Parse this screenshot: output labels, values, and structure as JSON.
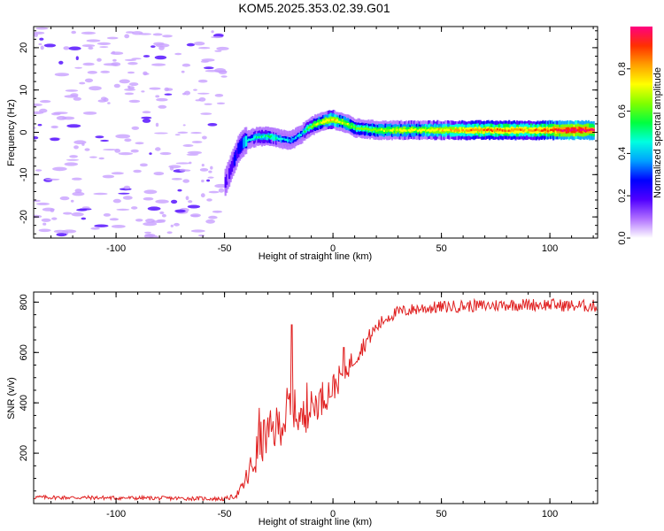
{
  "title": "KOM5.2025.353.02.39.G01",
  "spectrogram": {
    "xlabel": "Height of straight line (km)",
    "ylabel": "Frequency (Hz)",
    "xlim": [
      -138,
      122
    ],
    "ylim": [
      -25,
      25
    ],
    "xticks": [
      -100,
      -50,
      0,
      50,
      100
    ],
    "yticks": [
      -20,
      -10,
      0,
      10,
      20
    ],
    "xtick_labels": [
      "-100",
      "-50",
      "0",
      "50",
      "100"
    ],
    "ytick_labels": [
      "-20",
      "-10",
      "0",
      "10",
      "20"
    ]
  },
  "colorbar": {
    "label": "Normalized spectral amplitude",
    "ticks": [
      0.0,
      0.2,
      0.4,
      0.6,
      0.8
    ],
    "tick_labels": [
      "0.0",
      "0.2",
      "0.4",
      "0.6",
      "0.8"
    ],
    "range": [
      0,
      1
    ],
    "colors": [
      "#ffffff",
      "#b070ff",
      "#5000ff",
      "#0000ff",
      "#00a0ff",
      "#00ffe0",
      "#00ff40",
      "#80ff00",
      "#ffff00",
      "#ffa000",
      "#ff3000",
      "#ff0080"
    ]
  },
  "chart_data": [
    {
      "type": "heatmap",
      "title": "KOM5.2025.353.02.39.G01",
      "xlabel": "Height of straight line (km)",
      "ylabel": "Frequency (Hz)",
      "xlim": [
        -138,
        122
      ],
      "ylim": [
        -25,
        25
      ],
      "ridge": {
        "x": [
          -50,
          -47,
          -44,
          -41,
          -38,
          -35,
          -30,
          -25,
          -20,
          -15,
          -12,
          -8,
          -5,
          -2,
          0,
          3,
          6,
          10,
          20,
          30,
          40,
          50,
          60,
          70,
          80,
          90,
          100,
          110,
          120
        ],
        "y": [
          -12,
          -8,
          -4,
          -2,
          -1.5,
          -1,
          -1,
          -1.5,
          -2,
          -0.5,
          1,
          2,
          2.5,
          3,
          3,
          2.5,
          2,
          1,
          0.5,
          0.5,
          0.5,
          0.5,
          0.5,
          0.5,
          0.5,
          0.5,
          0.5,
          0.5,
          0.5
        ],
        "amplitude": [
          0.15,
          0.2,
          0.25,
          0.35,
          0.45,
          0.5,
          0.55,
          0.45,
          0.4,
          0.4,
          0.55,
          0.65,
          0.7,
          0.75,
          0.75,
          0.7,
          0.65,
          0.6,
          0.65,
          0.7,
          0.7,
          0.75,
          0.8,
          0.85,
          0.85,
          0.8,
          0.9,
          1.0,
          0.95
        ]
      },
      "noise_region_x": [
        -138,
        -50
      ],
      "noise_amplitude": 0.05
    },
    {
      "type": "line",
      "xlabel": "Height of straight line (km)",
      "ylabel": "SNR (v/v)",
      "xlim": [
        -138,
        122
      ],
      "ylim": [
        0,
        840
      ],
      "xticks": [
        -100,
        -50,
        0,
        50,
        100
      ],
      "yticks": [
        200,
        400,
        600,
        800
      ],
      "xtick_labels": [
        "-100",
        "-50",
        "0",
        "50",
        "100"
      ],
      "ytick_labels": [
        "200",
        "400",
        "600",
        "800"
      ],
      "series": [
        {
          "name": "SNR",
          "color": "#e02020",
          "x": [
            -138,
            -60,
            -50,
            -45,
            -42,
            -38,
            -35,
            -32,
            -29,
            -26,
            -23,
            -20,
            -18,
            -15,
            -10,
            -5,
            0,
            5,
            10,
            15,
            20,
            25,
            30,
            40,
            50,
            60,
            70,
            80,
            90,
            100,
            110,
            122
          ],
          "y": [
            25,
            20,
            18,
            30,
            60,
            130,
            200,
            260,
            280,
            300,
            330,
            360,
            380,
            330,
            380,
            420,
            460,
            520,
            580,
            640,
            700,
            740,
            760,
            775,
            780,
            785,
            785,
            790,
            790,
            790,
            785,
            785
          ],
          "noise": [
            8,
            8,
            8,
            10,
            25,
            70,
            90,
            90,
            90,
            90,
            90,
            140,
            80,
            80,
            70,
            70,
            60,
            50,
            40,
            35,
            30,
            25,
            25,
            25,
            25,
            25,
            25,
            25,
            25,
            25,
            25,
            25
          ],
          "spikes": [
            {
              "x": -19,
              "y": 710
            },
            {
              "x": -34,
              "y": 380
            },
            {
              "x": -12,
              "y": 480
            },
            {
              "x": 5,
              "y": 620
            }
          ]
        }
      ]
    }
  ]
}
